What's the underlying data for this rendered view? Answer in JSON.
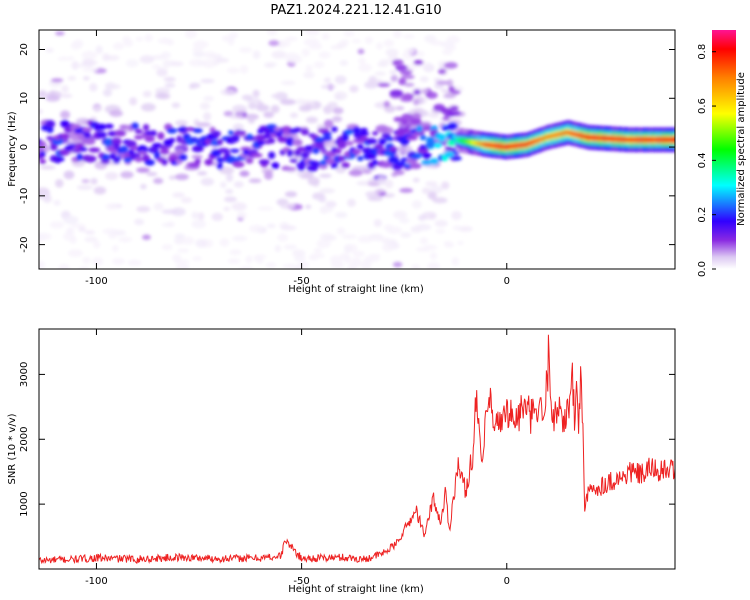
{
  "title": "PAZ1.2024.221.12.41.G10",
  "chart_data": [
    {
      "type": "heatmap",
      "xlabel": "Height of straight line (km)",
      "ylabel": "Frequency (Hz)",
      "xlim": [
        -114,
        41
      ],
      "ylim": [
        -25,
        24
      ],
      "xticks": [
        -100,
        -50,
        0
      ],
      "yticks": [
        -20,
        -10,
        0,
        10,
        20
      ],
      "colorbar": {
        "label": "Normalized spectral amplitude",
        "range": [
          0,
          0.88
        ],
        "ticks": [
          0.0,
          0.2,
          0.4,
          0.6,
          0.8
        ],
        "colormap": [
          "#ffffff",
          "#dcc8f2",
          "#8a2be2",
          "#3000ff",
          "#00ffff",
          "#00ff00",
          "#ffff00",
          "#ff8000",
          "#ff0000",
          "#ff1493"
        ]
      },
      "ridge": [
        {
          "x": -113,
          "freq": 1.0,
          "amp": 0.2
        },
        {
          "x": -100,
          "freq": 1.0,
          "amp": 0.22
        },
        {
          "x": -90,
          "freq": 0.5,
          "amp": 0.2
        },
        {
          "x": -70,
          "freq": 0.0,
          "amp": 0.22
        },
        {
          "x": -60,
          "freq": 0.5,
          "amp": 0.2
        },
        {
          "x": -50,
          "freq": -0.5,
          "amp": 0.22
        },
        {
          "x": -40,
          "freq": 0.0,
          "amp": 0.22
        },
        {
          "x": -25,
          "freq": -0.5,
          "amp": 0.22
        },
        {
          "x": -12,
          "freq": 1.5,
          "amp": 0.35
        },
        {
          "x": -5,
          "freq": 0.5,
          "amp": 0.75
        },
        {
          "x": 0,
          "freq": 0.0,
          "amp": 0.8
        },
        {
          "x": 5,
          "freq": 0.5,
          "amp": 0.78
        },
        {
          "x": 10,
          "freq": 2.0,
          "amp": 0.7
        },
        {
          "x": 15,
          "freq": 3.0,
          "amp": 0.72
        },
        {
          "x": 20,
          "freq": 2.0,
          "amp": 0.8
        },
        {
          "x": 30,
          "freq": 1.5,
          "amp": 0.78
        },
        {
          "x": 41,
          "freq": 1.5,
          "amp": 0.8
        }
      ]
    },
    {
      "type": "line",
      "xlabel": "Height of straight line (km)",
      "ylabel": "SNR (10 * v/v)",
      "xlim": [
        -114,
        41
      ],
      "ylim": [
        0,
        3700
      ],
      "xticks": [
        -100,
        -50,
        0
      ],
      "yticks": [
        1000,
        2000,
        3000
      ],
      "series": [
        {
          "color": "#ee2222",
          "x": [
            -114,
            -105,
            -100,
            -90,
            -80,
            -70,
            -60,
            -55,
            -54,
            -50,
            -45,
            -40,
            -35,
            -32,
            -30,
            -27,
            -25,
            -22,
            -20,
            -18,
            -16,
            -15,
            -14,
            -12,
            -10,
            -8,
            -7.5,
            -6,
            -5,
            -4,
            -3,
            -2,
            -1,
            0,
            2,
            4,
            6,
            8,
            9,
            10,
            10.3,
            10.6,
            11,
            12,
            13,
            14,
            15,
            16,
            16.5,
            17,
            17.5,
            18,
            18.4,
            18.7,
            19,
            20,
            22,
            25,
            28,
            30,
            33,
            35,
            38,
            41
          ],
          "y": [
            130,
            150,
            170,
            150,
            180,
            160,
            170,
            200,
            450,
            160,
            170,
            180,
            150,
            200,
            250,
            380,
            600,
            900,
            500,
            1100,
            700,
            1200,
            600,
            1600,
            1200,
            1900,
            2600,
            1600,
            2300,
            2650,
            2000,
            2350,
            2200,
            2500,
            2250,
            2500,
            2350,
            2450,
            2300,
            3000,
            3650,
            3000,
            2400,
            2300,
            2600,
            2250,
            2500,
            2900,
            2300,
            2750,
            2250,
            2950,
            2500,
            1900,
            900,
            1200,
            1250,
            1350,
            1400,
            1500,
            1450,
            1550,
            1500,
            1550
          ]
        }
      ]
    }
  ]
}
